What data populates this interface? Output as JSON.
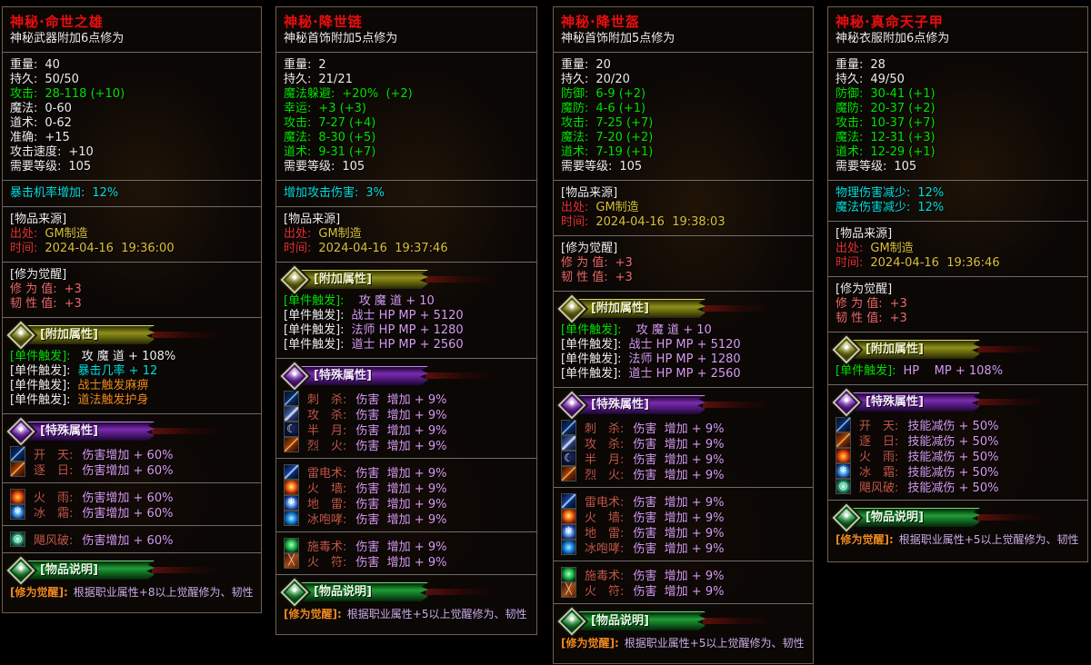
{
  "colors": {
    "title_red": "#e21010",
    "text_white": "#ededed",
    "stat_green": "#00e100",
    "cyan": "#00dede",
    "gold": "#d9c03b",
    "source_red": "#e23030",
    "awaken_pink": "#ef6a6a",
    "orange": "#ef8a1f",
    "violet": "#d79bf0",
    "skill_red": "#c25748",
    "lavender": "#cfaee8",
    "border_brown": "#6f604b",
    "divider_gray": "#8d8d8d"
  },
  "panels": [
    {
      "title": "神秘·命世之雄",
      "subtitle": "神秘武器附加6点修为",
      "stats": [
        {
          "l": "重量:",
          "v": "40",
          "c": "white"
        },
        {
          "l": "持久:",
          "v": "50/50",
          "c": "white"
        },
        {
          "l": "攻击:",
          "v": "28-118 (+10)",
          "c": "green"
        },
        {
          "l": "魔法:",
          "v": "0-60",
          "c": "white"
        },
        {
          "l": "道术:",
          "v": "0-62",
          "c": "white"
        },
        {
          "l": "准确:",
          "v": "+15",
          "c": "white"
        },
        {
          "l": "攻击速度:",
          "v": "+10",
          "c": "white"
        },
        {
          "l": "需要等级:",
          "v": "105",
          "c": "white"
        }
      ],
      "bonus": [
        {
          "l": "暴击机率增加:",
          "v": "12%"
        }
      ],
      "source": {
        "header": "[物品来源]",
        "rows": [
          {
            "l": "出处:",
            "v": "GM制造"
          },
          {
            "l": "时间:",
            "v": "2024-04-16  19:36:00"
          }
        ]
      },
      "awaken": {
        "header": "[修为觉醒]",
        "rows": [
          {
            "l": "修 为 值:",
            "v": "+3"
          },
          {
            "l": "韧 性 值:",
            "v": "+3"
          }
        ]
      },
      "addon": {
        "banner": "[附加属性]",
        "rows": [
          {
            "l": "[单件触发]:",
            "lc": "green",
            "v": " 攻 魔 道 + 108%",
            "vc": "white"
          },
          {
            "l": "[单件触发]:",
            "lc": "white",
            "v": "暴击几率 + 12",
            "vc": "cyan"
          },
          {
            "l": "[单件触发]:",
            "lc": "white",
            "v": "战士触发麻痹",
            "vc": "orange"
          },
          {
            "l": "[单件触发]:",
            "lc": "white",
            "v": "道法触发护身",
            "vc": "orange"
          }
        ]
      },
      "special": {
        "banner": "[特殊属性]",
        "groups": [
          [
            {
              "icon": "sky-slash-icon",
              "name": "开　天:",
              "v": "伤害增加 + 60%"
            },
            {
              "icon": "sun-chase-slash-icon",
              "name": "逐　日:",
              "v": "伤害增加 + 60%"
            }
          ],
          [
            {
              "icon": "fire-rain-icon",
              "name": "火　雨:",
              "v": "伤害增加 + 60%"
            },
            {
              "icon": "ice-frost-icon",
              "name": "冰　霜:",
              "v": "伤害增加 + 60%"
            }
          ],
          [
            {
              "icon": "hurricane-orb-icon",
              "name": "飓风破:",
              "v": "伤害增加 + 60%"
            }
          ]
        ]
      },
      "desc": {
        "banner": "[物品说明]",
        "label": "[修为觉醒]:",
        "text": "根据职业属性+8以上觉醒修为、韧性"
      }
    },
    {
      "title": "神秘·降世链",
      "subtitle": "神秘首饰附加5点修为",
      "stats": [
        {
          "l": "重量:",
          "v": "2",
          "c": "white"
        },
        {
          "l": "持久:",
          "v": "21/21",
          "c": "white"
        },
        {
          "l": "魔法躲避:",
          "v": "+20%  (+2)",
          "c": "green"
        },
        {
          "l": "幸运:",
          "v": "+3 (+3)",
          "c": "green"
        },
        {
          "l": "攻击:",
          "v": "7-27 (+4)",
          "c": "green"
        },
        {
          "l": "魔法:",
          "v": "8-30 (+5)",
          "c": "green"
        },
        {
          "l": "道术:",
          "v": "9-31 (+7)",
          "c": "green"
        },
        {
          "l": "需要等级:",
          "v": "105",
          "c": "white"
        }
      ],
      "bonus": [
        {
          "l": "增加攻击伤害:",
          "v": "3%"
        }
      ],
      "source": {
        "header": "[物品来源]",
        "rows": [
          {
            "l": "出处:",
            "v": "GM制造"
          },
          {
            "l": "时间:",
            "v": "2024-04-16  19:37:46"
          }
        ]
      },
      "awaken": null,
      "addon": {
        "banner": "[附加属性]",
        "rows": [
          {
            "l": "[单件触发]:",
            "lc": "green",
            "v": "  攻 魔 道 + 10",
            "vc": "violet"
          },
          {
            "l": "[单件触发]:",
            "lc": "white",
            "v": "战士 HP MP + 5120",
            "vc": "violet"
          },
          {
            "l": "[单件触发]:",
            "lc": "white",
            "v": "法师 HP MP + 1280",
            "vc": "violet"
          },
          {
            "l": "[单件触发]:",
            "lc": "white",
            "v": "道士 HP MP + 2560",
            "vc": "violet"
          }
        ]
      },
      "special": {
        "banner": "[特殊属性]",
        "groups": [
          [
            {
              "icon": "stab-blade-icon",
              "name": "刺　杀:",
              "v": "伤害  增加 + 9%"
            },
            {
              "icon": "attack-blade-icon",
              "name": "攻　杀:",
              "v": "伤害  增加 + 9%"
            },
            {
              "icon": "half-moon-icon",
              "name": "半　月:",
              "v": "伤害  增加 + 9%"
            },
            {
              "icon": "blaze-slash-icon",
              "name": "烈　火:",
              "v": "伤害  增加 + 9%"
            }
          ],
          [
            {
              "icon": "lightning-bolt-icon",
              "name": "雷电术:",
              "v": "伤害  增加 + 9%"
            },
            {
              "icon": "fire-wall-icon",
              "name": "火　墙:",
              "v": "伤害  增加 + 9%"
            },
            {
              "icon": "ground-frost-icon",
              "name": "地　雷:",
              "v": "伤害  增加 + 9%"
            },
            {
              "icon": "ice-roar-icon",
              "name": "冰咆哮:",
              "v": "伤害  增加 + 9%"
            }
          ],
          [
            {
              "icon": "poison-flask-icon",
              "name": "施毒术:",
              "v": "伤害  增加 + 9%"
            },
            {
              "icon": "fire-talisman-icon",
              "name": "火　符:",
              "v": "伤害  增加 + 9%"
            }
          ]
        ]
      },
      "desc": {
        "banner": "[物品说明]",
        "label": "[修为觉醒]:",
        "text": "根据职业属性+5以上觉醒修为、韧性"
      }
    },
    {
      "title": "神秘·降世盔",
      "subtitle": "神秘首饰附加5点修为",
      "stats": [
        {
          "l": "重量:",
          "v": "20",
          "c": "white"
        },
        {
          "l": "持久:",
          "v": "20/20",
          "c": "white"
        },
        {
          "l": "防御:",
          "v": "6-9 (+2)",
          "c": "green"
        },
        {
          "l": "魔防:",
          "v": "4-6 (+1)",
          "c": "green"
        },
        {
          "l": "攻击:",
          "v": "7-25 (+7)",
          "c": "green"
        },
        {
          "l": "魔法:",
          "v": "7-20 (+2)",
          "c": "green"
        },
        {
          "l": "道术:",
          "v": "7-19 (+1)",
          "c": "green"
        },
        {
          "l": "需要等级:",
          "v": "105",
          "c": "white"
        }
      ],
      "bonus": null,
      "source": {
        "header": "[物品来源]",
        "rows": [
          {
            "l": "出处:",
            "v": "GM制造"
          },
          {
            "l": "时间:",
            "v": "2024-04-16  19:38:03"
          }
        ]
      },
      "awaken": {
        "header": "[修为觉醒]",
        "rows": [
          {
            "l": "修 为 值:",
            "v": "+3"
          },
          {
            "l": "韧 性 值:",
            "v": "+3"
          }
        ]
      },
      "addon": {
        "banner": "[附加属性]",
        "rows": [
          {
            "l": "[单件触发]:",
            "lc": "green",
            "v": "  攻 魔 道 + 10",
            "vc": "violet"
          },
          {
            "l": "[单件触发]:",
            "lc": "white",
            "v": "战士 HP MP + 5120",
            "vc": "violet"
          },
          {
            "l": "[单件触发]:",
            "lc": "white",
            "v": "法师 HP MP + 1280",
            "vc": "violet"
          },
          {
            "l": "[单件触发]:",
            "lc": "white",
            "v": "道士 HP MP + 2560",
            "vc": "violet"
          }
        ]
      },
      "special": {
        "banner": "[特殊属性]",
        "groups": [
          [
            {
              "icon": "stab-blade-icon",
              "name": "刺　杀:",
              "v": "伤害  增加 + 9%"
            },
            {
              "icon": "attack-blade-icon",
              "name": "攻　杀:",
              "v": "伤害  增加 + 9%"
            },
            {
              "icon": "half-moon-icon",
              "name": "半　月:",
              "v": "伤害  增加 + 9%"
            },
            {
              "icon": "blaze-slash-icon",
              "name": "烈　火:",
              "v": "伤害  增加 + 9%"
            }
          ],
          [
            {
              "icon": "lightning-bolt-icon",
              "name": "雷电术:",
              "v": "伤害  增加 + 9%"
            },
            {
              "icon": "fire-wall-icon",
              "name": "火　墙:",
              "v": "伤害  增加 + 9%"
            },
            {
              "icon": "ground-frost-icon",
              "name": "地　雷:",
              "v": "伤害  增加 + 9%"
            },
            {
              "icon": "ice-roar-icon",
              "name": "冰咆哮:",
              "v": "伤害  增加 + 9%"
            }
          ],
          [
            {
              "icon": "poison-flask-icon",
              "name": "施毒术:",
              "v": "伤害  增加 + 9%"
            },
            {
              "icon": "fire-talisman-icon",
              "name": "火　符:",
              "v": "伤害  增加 + 9%"
            }
          ]
        ]
      },
      "desc": {
        "banner": "[物品说明]",
        "label": "[修为觉醒]:",
        "text": "根据职业属性+5以上觉醒修为、韧性"
      }
    },
    {
      "title": "神秘·真命天子甲",
      "subtitle": "神秘衣服附加6点修为",
      "stats": [
        {
          "l": "重量:",
          "v": "28",
          "c": "white"
        },
        {
          "l": "持久:",
          "v": "49/50",
          "c": "white"
        },
        {
          "l": "防御:",
          "v": "30-41 (+1)",
          "c": "green"
        },
        {
          "l": "魔防:",
          "v": "20-37 (+2)",
          "c": "green"
        },
        {
          "l": "攻击:",
          "v": "10-37 (+7)",
          "c": "green"
        },
        {
          "l": "魔法:",
          "v": "12-31 (+3)",
          "c": "green"
        },
        {
          "l": "道术:",
          "v": "12-29 (+1)",
          "c": "green"
        },
        {
          "l": "需要等级:",
          "v": "105",
          "c": "white"
        }
      ],
      "bonus": [
        {
          "l": "物理伤害减少:",
          "v": "12%"
        },
        {
          "l": "魔法伤害减少:",
          "v": "12%"
        }
      ],
      "source": {
        "header": "[物品来源]",
        "rows": [
          {
            "l": "出处:",
            "v": "GM制造"
          },
          {
            "l": "时间:",
            "v": "2024-04-16  19:36:46"
          }
        ]
      },
      "awaken": {
        "header": "[修为觉醒]",
        "rows": [
          {
            "l": "修 为 值:",
            "v": "+3"
          },
          {
            "l": "韧 性 值:",
            "v": "+3"
          }
        ]
      },
      "addon": {
        "banner": "[附加属性]",
        "rows": [
          {
            "l": "[单件触发]:",
            "lc": "green",
            "v": "HP    MP + 108%",
            "vc": "violet"
          }
        ]
      },
      "special": {
        "banner": "[特殊属性]",
        "groups": [
          [
            {
              "icon": "sky-slash-icon",
              "name": "开　天:",
              "v": "技能减伤 + 50%"
            },
            {
              "icon": "sun-chase-slash-icon",
              "name": "逐　日:",
              "v": "技能减伤 + 50%"
            },
            {
              "icon": "fire-rain-icon",
              "name": "火　雨:",
              "v": "技能减伤 + 50%"
            },
            {
              "icon": "ice-frost-icon",
              "name": "冰　霜:",
              "v": "技能减伤 + 50%"
            },
            {
              "icon": "hurricane-orb-icon",
              "name": "飓风破:",
              "v": "技能减伤 + 50%"
            }
          ]
        ]
      },
      "desc": {
        "banner": "[物品说明]",
        "label": "[修为觉醒]:",
        "text": "根据职业属性+5以上觉醒修为、韧性"
      }
    }
  ]
}
